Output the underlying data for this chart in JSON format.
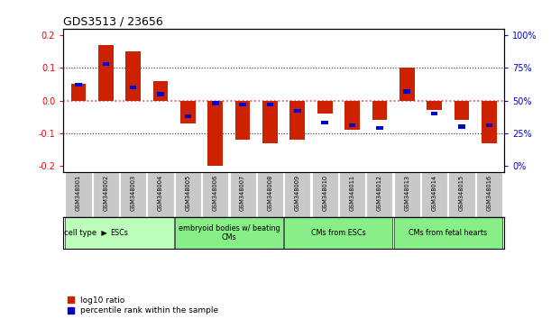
{
  "title": "GDS3513 / 23656",
  "samples": [
    "GSM348001",
    "GSM348002",
    "GSM348003",
    "GSM348004",
    "GSM348005",
    "GSM348006",
    "GSM348007",
    "GSM348008",
    "GSM348009",
    "GSM348010",
    "GSM348011",
    "GSM348012",
    "GSM348013",
    "GSM348014",
    "GSM348015",
    "GSM348016"
  ],
  "log10_ratio": [
    0.05,
    0.17,
    0.15,
    0.06,
    -0.07,
    -0.2,
    -0.12,
    -0.13,
    -0.12,
    -0.04,
    -0.09,
    -0.06,
    0.1,
    -0.03,
    -0.06,
    -0.13
  ],
  "percentile_rank_pct": [
    62,
    78,
    60,
    55,
    38,
    48,
    47,
    47,
    42,
    33,
    31,
    29,
    57,
    40,
    30,
    31
  ],
  "ylim": [
    -0.22,
    0.22
  ],
  "yticks_left": [
    -0.2,
    -0.1,
    0.0,
    0.1,
    0.2
  ],
  "yticks_right_labels": [
    "0%",
    "25%",
    "50%",
    "75%",
    "100%"
  ],
  "yticks_right_vals": [
    -0.2,
    -0.1,
    0.0,
    0.1,
    0.2
  ],
  "bar_color_red": "#cc2200",
  "bar_color_blue": "#0000cc",
  "zero_line_color": "#ff4444",
  "dotted_line_color": "#333333",
  "bg_gray": "#c8c8c8",
  "cell_type_groups": [
    {
      "label": "ESCs",
      "start": 0,
      "end": 3,
      "color": "#bbffbb"
    },
    {
      "label": "embryoid bodies w/ beating\nCMs",
      "start": 4,
      "end": 7,
      "color": "#88ee88"
    },
    {
      "label": "CMs from ESCs",
      "start": 8,
      "end": 11,
      "color": "#88ee88"
    },
    {
      "label": "CMs from fetal hearts",
      "start": 12,
      "end": 15,
      "color": "#88ee88"
    }
  ],
  "legend_red": "log10 ratio",
  "legend_blue": "percentile rank within the sample",
  "bar_width": 0.55,
  "blue_bar_width": 0.25,
  "blue_bar_height": 0.012
}
